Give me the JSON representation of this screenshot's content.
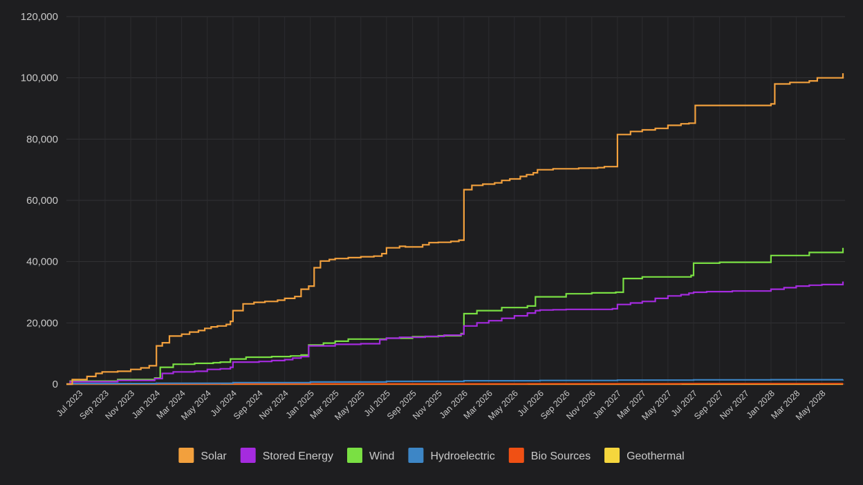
{
  "chart_data": {
    "type": "line",
    "step": true,
    "ylim": [
      0,
      120000
    ],
    "yticks": [
      0,
      20000,
      40000,
      60000,
      80000,
      100000,
      120000
    ],
    "ytick_labels": [
      "0",
      "20,000",
      "40,000",
      "60,000",
      "80,000",
      "100,000",
      "120,000"
    ],
    "x_range": [
      "2023-06-01",
      "2028-06-25"
    ],
    "xtick_dates": [
      "2023-07-01",
      "2023-09-01",
      "2023-11-01",
      "2024-01-01",
      "2024-03-01",
      "2024-05-01",
      "2024-07-01",
      "2024-09-01",
      "2024-11-01",
      "2025-01-01",
      "2025-03-01",
      "2025-05-01",
      "2025-07-01",
      "2025-09-01",
      "2025-11-01",
      "2026-01-01",
      "2026-03-01",
      "2026-05-01",
      "2026-07-01",
      "2026-09-01",
      "2026-11-01",
      "2027-01-01",
      "2027-03-01",
      "2027-05-01",
      "2027-07-01",
      "2027-09-01",
      "2027-11-01",
      "2028-01-01",
      "2028-03-01",
      "2028-05-01"
    ],
    "xtick_labels": [
      "Jul 2023",
      "Sep 2023",
      "Nov 2023",
      "Jan 2024",
      "Mar 2024",
      "May 2024",
      "Jul 2024",
      "Sep 2024",
      "Nov 2024",
      "Jan 2025",
      "Mar 2025",
      "May 2025",
      "Jul 2025",
      "Sep 2025",
      "Nov 2025",
      "Jan 2026",
      "Mar 2026",
      "May 2026",
      "Jul 2026",
      "Sep 2026",
      "Nov 2026",
      "Jan 2027",
      "Mar 2027",
      "May 2027",
      "Jul 2027",
      "Sep 2027",
      "Nov 2027",
      "Jan 2028",
      "Mar 2028",
      "May 2028"
    ],
    "grid": true,
    "legend_position": "bottom",
    "series": [
      {
        "name": "Solar",
        "color": "#f2a03d",
        "x": [
          "2023-06-01",
          "2023-06-15",
          "2023-07-20",
          "2023-08-10",
          "2023-08-25",
          "2023-10-01",
          "2023-11-01",
          "2023-11-25",
          "2023-12-15",
          "2024-01-01",
          "2024-01-15",
          "2024-02-01",
          "2024-03-01",
          "2024-03-20",
          "2024-04-10",
          "2024-04-25",
          "2024-05-10",
          "2024-05-25",
          "2024-06-15",
          "2024-06-25",
          "2024-07-01",
          "2024-07-25",
          "2024-08-20",
          "2024-09-15",
          "2024-10-15",
          "2024-11-01",
          "2024-11-25",
          "2024-12-10",
          "2024-12-28",
          "2025-01-10",
          "2025-01-25",
          "2025-02-15",
          "2025-03-01",
          "2025-04-01",
          "2025-05-01",
          "2025-06-01",
          "2025-06-20",
          "2025-07-01",
          "2025-08-01",
          "2025-08-15",
          "2025-09-25",
          "2025-10-10",
          "2025-11-01",
          "2025-12-01",
          "2025-12-20",
          "2026-01-01",
          "2026-01-20",
          "2026-02-15",
          "2026-03-15",
          "2026-04-01",
          "2026-04-20",
          "2026-05-15",
          "2026-05-30",
          "2026-06-15",
          "2026-06-25",
          "2026-08-01",
          "2026-10-01",
          "2026-11-15",
          "2026-12-01",
          "2026-12-20",
          "2027-01-01",
          "2027-02-01",
          "2027-03-01",
          "2027-04-01",
          "2027-05-01",
          "2027-06-01",
          "2027-06-20",
          "2027-07-05",
          "2028-01-01",
          "2028-01-10",
          "2028-02-15",
          "2028-04-01",
          "2028-04-20",
          "2028-06-20"
        ],
        "y": [
          0,
          1500,
          2500,
          3500,
          4000,
          4200,
          4800,
          5300,
          6000,
          12500,
          13500,
          15700,
          16300,
          17000,
          17500,
          18200,
          18700,
          19000,
          19500,
          20500,
          24000,
          26200,
          26700,
          27000,
          27400,
          28000,
          28600,
          31000,
          32000,
          38000,
          40200,
          40700,
          41000,
          41300,
          41600,
          41800,
          42600,
          44500,
          45000,
          44800,
          45500,
          46200,
          46300,
          46600,
          47000,
          63500,
          64900,
          65300,
          65700,
          66500,
          67000,
          67800,
          68400,
          69000,
          70000,
          70300,
          70500,
          70700,
          71000,
          71000,
          81500,
          82500,
          83000,
          83500,
          84500,
          85000,
          85200,
          91000,
          91500,
          98000,
          98500,
          99000,
          100000,
          101500
        ]
      },
      {
        "name": "Stored Energy",
        "color": "#a52bdf",
        "x": [
          "2023-06-01",
          "2023-06-10",
          "2023-10-01",
          "2023-12-28",
          "2024-01-15",
          "2024-02-10",
          "2024-04-01",
          "2024-05-01",
          "2024-06-01",
          "2024-06-25",
          "2024-07-01",
          "2024-09-01",
          "2024-10-01",
          "2024-11-01",
          "2024-11-20",
          "2024-12-10",
          "2024-12-28",
          "2025-03-01",
          "2025-05-01",
          "2025-06-15",
          "2025-07-01",
          "2025-08-01",
          "2025-10-01",
          "2025-11-15",
          "2025-12-25",
          "2026-01-01",
          "2026-02-01",
          "2026-03-01",
          "2026-04-01",
          "2026-05-01",
          "2026-06-01",
          "2026-06-20",
          "2026-07-01",
          "2026-08-01",
          "2026-09-01",
          "2026-12-20",
          "2027-01-01",
          "2027-02-01",
          "2027-03-01",
          "2027-04-01",
          "2027-05-01",
          "2027-06-01",
          "2027-06-20",
          "2027-07-01",
          "2027-08-01",
          "2027-10-01",
          "2028-01-01",
          "2028-02-01",
          "2028-03-01",
          "2028-04-01",
          "2028-05-01",
          "2028-06-20"
        ],
        "y": [
          0,
          800,
          1200,
          1800,
          3500,
          4000,
          4200,
          4800,
          5000,
          5500,
          7200,
          7400,
          7700,
          8000,
          8500,
          9000,
          12500,
          13000,
          13200,
          14500,
          15000,
          15300,
          15600,
          16000,
          16300,
          19000,
          20000,
          20700,
          21500,
          22300,
          23200,
          24000,
          24200,
          24300,
          24400,
          24600,
          26000,
          26500,
          27000,
          28000,
          28800,
          29200,
          29700,
          30000,
          30200,
          30400,
          31000,
          31500,
          32000,
          32300,
          32500,
          33500
        ]
      },
      {
        "name": "Wind",
        "color": "#7ae043",
        "x": [
          "2023-06-01",
          "2023-06-10",
          "2023-10-01",
          "2023-12-28",
          "2024-01-10",
          "2024-02-10",
          "2024-04-01",
          "2024-05-15",
          "2024-06-01",
          "2024-06-25",
          "2024-08-01",
          "2024-10-01",
          "2024-11-15",
          "2024-12-10",
          "2024-12-28",
          "2025-02-01",
          "2025-03-01",
          "2025-04-01",
          "2025-07-01",
          "2025-09-01",
          "2025-11-01",
          "2025-12-25",
          "2026-01-01",
          "2026-02-01",
          "2026-04-01",
          "2026-06-01",
          "2026-06-20",
          "2026-09-01",
          "2026-11-01",
          "2026-12-28",
          "2027-01-15",
          "2027-03-01",
          "2027-06-25",
          "2027-07-01",
          "2027-09-01",
          "2028-01-01",
          "2028-04-01",
          "2028-06-20"
        ],
        "y": [
          0,
          1000,
          1500,
          2000,
          5500,
          6500,
          6800,
          7000,
          7200,
          8200,
          8800,
          9000,
          9200,
          9500,
          12800,
          13400,
          14000,
          14700,
          15000,
          15500,
          15800,
          16500,
          23000,
          24000,
          25000,
          25500,
          28500,
          29500,
          29800,
          30000,
          34500,
          35000,
          35500,
          39500,
          39800,
          42000,
          43000,
          44500
        ]
      },
      {
        "name": "Hydroelectric",
        "color": "#3d86c6",
        "x": [
          "2023-06-01",
          "2023-06-15",
          "2024-01-01",
          "2024-07-01",
          "2025-01-01",
          "2025-07-01",
          "2026-01-01",
          "2026-07-01",
          "2027-01-01",
          "2027-07-01",
          "2028-01-01",
          "2028-06-20"
        ],
        "y": [
          0,
          200,
          300,
          500,
          700,
          900,
          1100,
          1200,
          1300,
          1400,
          1450,
          1500
        ]
      },
      {
        "name": "Bio Sources",
        "color": "#f05014",
        "x": [
          "2023-06-01",
          "2023-06-15",
          "2024-06-01",
          "2025-06-01",
          "2026-06-01",
          "2027-06-01",
          "2028-06-20"
        ],
        "y": [
          0,
          50,
          80,
          100,
          120,
          150,
          180
        ]
      },
      {
        "name": "Geothermal",
        "color": "#f5d63d",
        "x": [
          "2023-06-01",
          "2028-06-20"
        ],
        "y": [
          0,
          0
        ]
      }
    ]
  }
}
